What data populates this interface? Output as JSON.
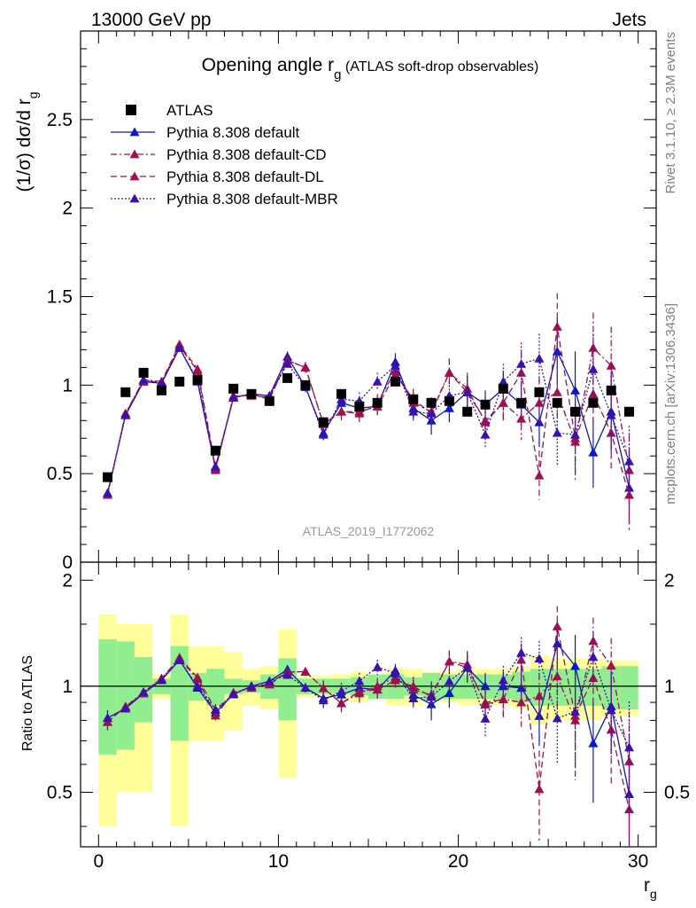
{
  "header": {
    "left": "13000 GeV pp",
    "right": "Jets"
  },
  "side_labels": {
    "rivet": "Rivet 3.1.10, ≥ 2.3M events",
    "mcplots": "mcplots.cern.ch [arXiv:1306.3436]"
  },
  "chart_data": {
    "type": "scatter",
    "title": "Opening angle r",
    "title_sub": "g",
    "title_suffix": " (ATLAS soft-drop observables)",
    "analysis_id": "ATLAS_2019_I1772062",
    "ylabel": "(1/σ) dσ/d r",
    "ylabel_sub": "g",
    "ratio_ylabel": "Ratio to ATLAS",
    "xlabel": "r",
    "xlabel_sub": "g",
    "xlim": [
      -1,
      31
    ],
    "ylim": [
      0,
      3
    ],
    "ratio_ylim": [
      0.35,
      2.25
    ],
    "x_ticks": [
      "0",
      "10",
      "20",
      "30"
    ],
    "x_tick_values": [
      0,
      10,
      20,
      30
    ],
    "y_ticks": [
      "0",
      "0.5",
      "1",
      "1.5",
      "2",
      "2.5"
    ],
    "y_tick_values": [
      0,
      0.5,
      1,
      1.5,
      2,
      2.5
    ],
    "ratio_ticks": [
      "0.5",
      "1",
      "2"
    ],
    "ratio_tick_values": [
      0.5,
      1,
      2
    ],
    "x": [
      0.5,
      1.5,
      2.5,
      3.5,
      4.5,
      5.5,
      6.5,
      7.5,
      8.5,
      9.5,
      10.5,
      11.5,
      12.5,
      13.5,
      14.5,
      15.5,
      16.5,
      17.5,
      18.5,
      19.5,
      20.5,
      21.5,
      22.5,
      23.5,
      24.5,
      25.5,
      26.5,
      27.5,
      28.5,
      29.5
    ],
    "series": [
      {
        "name": "ATLAS",
        "color": "#000000",
        "marker": "square",
        "line": "none",
        "values": [
          0.48,
          0.96,
          1.07,
          0.97,
          1.02,
          1.03,
          0.63,
          0.98,
          0.95,
          0.91,
          1.04,
          1.0,
          0.79,
          0.95,
          0.88,
          0.9,
          1.02,
          0.92,
          0.9,
          0.91,
          0.85,
          0.89,
          0.98,
          0.9,
          0.96,
          0.9,
          0.85,
          0.9,
          0.97,
          0.85
        ],
        "band_inner": [
          0.36,
          0.34,
          0.21,
          0.05,
          0.3,
          0.09,
          0.12,
          0.05,
          0.04,
          0.08,
          0.2,
          0.05,
          0.05,
          0.05,
          0.06,
          0.08,
          0.08,
          0.06,
          0.09,
          0.08,
          0.08,
          0.08,
          0.08,
          0.1,
          0.12,
          0.12,
          0.12,
          0.12,
          0.14,
          0.14
        ],
        "band_outer": [
          0.6,
          0.5,
          0.5,
          0.08,
          0.6,
          0.3,
          0.3,
          0.25,
          0.12,
          0.14,
          0.45,
          0.07,
          0.07,
          0.08,
          0.1,
          0.08,
          0.12,
          0.12,
          0.1,
          0.1,
          0.12,
          0.12,
          0.12,
          0.14,
          0.22,
          0.2,
          0.2,
          0.2,
          0.18,
          0.18
        ]
      },
      {
        "name": "Pythia 8.308 default",
        "color": "#0a18c8",
        "marker": "triangle",
        "line": "solid",
        "values": [
          0.39,
          0.83,
          1.02,
          1.01,
          1.21,
          1.02,
          0.53,
          0.93,
          0.95,
          0.94,
          1.16,
          0.99,
          0.73,
          0.9,
          0.87,
          0.88,
          1.13,
          0.87,
          0.8,
          0.87,
          0.96,
          0.89,
          0.98,
          0.89,
          0.79,
          1.19,
          0.97,
          0.62,
          0.85,
          0.42
        ],
        "errors": [
          0.02,
          0.02,
          0.02,
          0.02,
          0.02,
          0.02,
          0.02,
          0.02,
          0.02,
          0.02,
          0.03,
          0.03,
          0.04,
          0.05,
          0.05,
          0.05,
          0.05,
          0.06,
          0.08,
          0.08,
          0.09,
          0.08,
          0.1,
          0.12,
          0.14,
          0.19,
          0.22,
          0.2,
          0.22,
          0.2
        ]
      },
      {
        "name": "Pythia 8.308 default-CD",
        "color": "#a01050",
        "marker": "triangle",
        "line": "dashdot",
        "values": [
          0.38,
          0.84,
          1.03,
          1.02,
          1.22,
          1.08,
          0.52,
          0.94,
          0.94,
          0.93,
          1.14,
          1.1,
          0.78,
          0.85,
          0.84,
          0.9,
          1.08,
          0.9,
          0.85,
          1.07,
          0.98,
          0.79,
          0.9,
          0.81,
          0.9,
          0.96,
          0.68,
          1.21,
          1.11,
          0.52
        ],
        "errors": [
          0.02,
          0.02,
          0.02,
          0.02,
          0.02,
          0.02,
          0.02,
          0.02,
          0.02,
          0.02,
          0.03,
          0.03,
          0.04,
          0.05,
          0.05,
          0.05,
          0.05,
          0.06,
          0.08,
          0.08,
          0.09,
          0.08,
          0.1,
          0.12,
          0.14,
          0.19,
          0.22,
          0.2,
          0.22,
          0.2
        ]
      },
      {
        "name": "Pythia 8.308 default-DL",
        "color": "#a01050",
        "marker": "triangle",
        "line": "dashed",
        "values": [
          0.38,
          0.84,
          1.02,
          1.02,
          1.23,
          1.09,
          0.54,
          0.93,
          0.95,
          0.92,
          1.14,
          1.1,
          0.78,
          0.85,
          0.85,
          0.88,
          1.06,
          0.92,
          0.84,
          1.07,
          0.96,
          0.8,
          0.9,
          1.07,
          0.49,
          1.33,
          0.7,
          0.95,
          0.73,
          0.38
        ],
        "errors": [
          0.02,
          0.02,
          0.02,
          0.02,
          0.02,
          0.02,
          0.02,
          0.02,
          0.02,
          0.02,
          0.03,
          0.03,
          0.04,
          0.05,
          0.05,
          0.05,
          0.05,
          0.06,
          0.08,
          0.08,
          0.09,
          0.08,
          0.1,
          0.12,
          0.14,
          0.19,
          0.22,
          0.2,
          0.22,
          0.2
        ]
      },
      {
        "name": "Pythia 8.308 default-MBR",
        "color": "#3a10b0",
        "marker": "triangle",
        "line": "dotted",
        "values": [
          0.39,
          0.83,
          1.03,
          1.01,
          1.21,
          1.03,
          0.54,
          0.93,
          0.95,
          0.94,
          1.12,
          0.99,
          0.72,
          0.92,
          0.91,
          1.02,
          1.11,
          0.85,
          0.84,
          0.94,
          0.96,
          0.72,
          1.02,
          1.12,
          1.15,
          0.73,
          0.72,
          1.09,
          0.83,
          0.57
        ],
        "errors": [
          0.02,
          0.02,
          0.02,
          0.02,
          0.02,
          0.02,
          0.02,
          0.02,
          0.02,
          0.02,
          0.03,
          0.03,
          0.04,
          0.05,
          0.05,
          0.05,
          0.05,
          0.06,
          0.08,
          0.08,
          0.09,
          0.08,
          0.1,
          0.12,
          0.14,
          0.19,
          0.22,
          0.2,
          0.22,
          0.2
        ]
      }
    ],
    "legend_position": "top-left",
    "band_colors": {
      "inner": "#90ee90",
      "outer": "#ffff99"
    },
    "grid": false
  }
}
